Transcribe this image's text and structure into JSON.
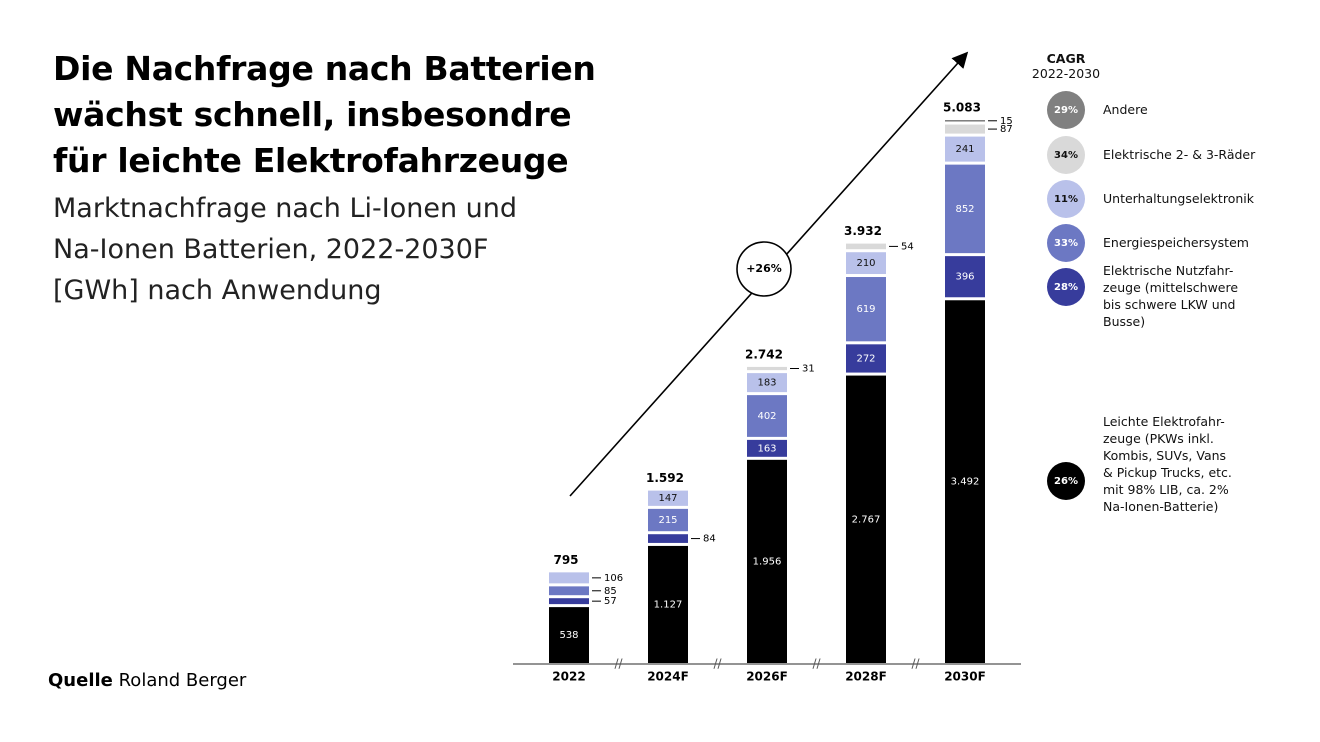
{
  "chart_data": {
    "type": "bar",
    "title": "Die Nachfrage nach Batterien\nwächst schnell, insbesondre\nfür leichte Elektrofahrzeuge",
    "subtitle": "Marktnachfrage nach Li-Ionen und\nNa-Ionen Batterien, 2022-2030F\n[GWh] nach Anwendung",
    "source_label": "Quelle",
    "source": "Roland Berger",
    "legend_title": "CAGR",
    "legend_subtitle": "2022-2030",
    "annotation": "+26%",
    "categories": [
      "2022",
      "2024F",
      "2026F",
      "2028F",
      "2030F"
    ],
    "totals": [
      795,
      1592,
      2742,
      3932,
      5083
    ],
    "totals_labels": [
      "795",
      "1.592",
      "2.742",
      "3.932",
      "5.083"
    ],
    "series": [
      {
        "name": "Leichte Elektrofahr-\nzeuge (PKWs inkl.\nKombis, SUVs, Vans\n& Pickup Trucks, etc.\nmit 98% LIB, ca. 2%\nNa-Ionen-Batterie)",
        "cagr": "26%",
        "color": "#000000",
        "values": [
          538,
          1127,
          1956,
          2767,
          3492
        ],
        "value_labels": [
          "538",
          "1.127",
          "1.956",
          "2.767",
          "3.492"
        ]
      },
      {
        "name": "Elektrische Nutzfahr-\nzeuge (mittelschwere\nbis schwere LKW und\nBusse)",
        "cagr": "28%",
        "color": "#373c9c",
        "values": [
          57,
          84,
          163,
          272,
          396
        ]
      },
      {
        "name": "Energiespeichersystem",
        "cagr": "33%",
        "color": "#6c78c3",
        "values": [
          85,
          215,
          402,
          619,
          852
        ]
      },
      {
        "name": "Unterhaltungselektronik",
        "cagr": "11%",
        "color": "#b9c1ea",
        "values": [
          106,
          147,
          183,
          210,
          241
        ]
      },
      {
        "name": "Elektrische 2- & 3-Räder",
        "cagr": "34%",
        "color": "#d9d9d9",
        "values": [
          null,
          null,
          31,
          54,
          87
        ]
      },
      {
        "name": "Andere",
        "cagr": "29%",
        "color": "#808080",
        "values": [
          null,
          null,
          null,
          null,
          15
        ]
      }
    ]
  }
}
